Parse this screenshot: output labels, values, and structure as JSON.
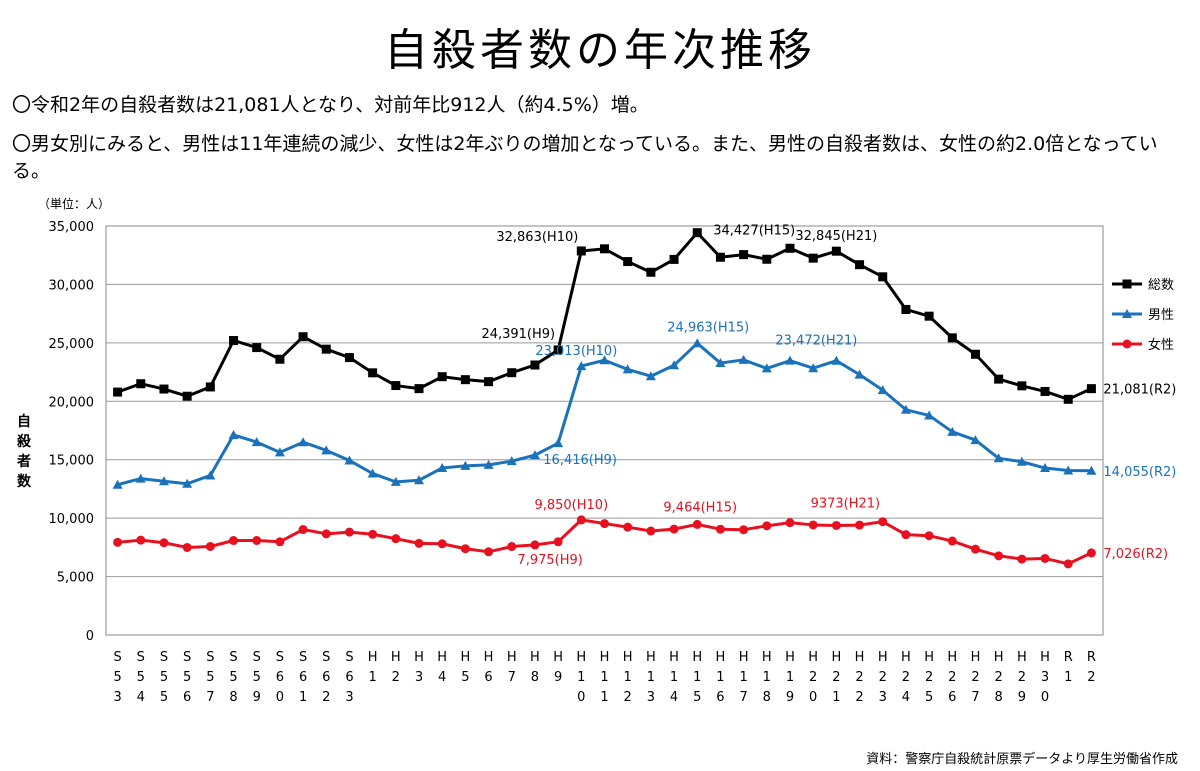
{
  "title": "自殺者数の年次推移",
  "bullets": [
    "〇令和2年の自殺者数は21,081人となり、対前年比912人（約4.5%）増。",
    "〇男女別にみると、男性は11年連続の減少、女性は2年ぶりの増加となっている。また、男性の自殺者数は、女性の約2.0倍となっている。"
  ],
  "source": "資料：警察庁自殺統計原票データより厚生労働省作成",
  "chart_data": {
    "type": "line",
    "unit_label": "（単位：人）",
    "ylabel": "自殺者数",
    "ylim": [
      0,
      35000
    ],
    "yticks": [
      0,
      5000,
      10000,
      15000,
      20000,
      25000,
      30000,
      35000
    ],
    "ytick_labels": [
      "0",
      "5,000",
      "10,000",
      "15,000",
      "20,000",
      "25,000",
      "30,000",
      "35,000"
    ],
    "categories": [
      "S53",
      "S54",
      "S55",
      "S56",
      "S57",
      "S58",
      "S59",
      "S60",
      "S61",
      "S62",
      "S63",
      "H1",
      "H2",
      "H3",
      "H4",
      "H5",
      "H6",
      "H7",
      "H8",
      "H9",
      "H10",
      "H11",
      "H12",
      "H13",
      "H14",
      "H15",
      "H16",
      "H17",
      "H18",
      "H19",
      "H20",
      "H21",
      "H22",
      "H23",
      "H24",
      "H25",
      "H26",
      "H27",
      "H28",
      "H29",
      "H30",
      "R1",
      "R2"
    ],
    "series": [
      {
        "name": "総数",
        "color": "#000000",
        "marker": "square",
        "values": [
          20788,
          21503,
          21048,
          20434,
          21228,
          25202,
          24596,
          23599,
          25524,
          24460,
          23742,
          22436,
          21346,
          21084,
          22104,
          21851,
          21679,
          22445,
          23104,
          24391,
          32863,
          33048,
          31957,
          31042,
          32143,
          34427,
          32325,
          32552,
          32155,
          33093,
          32249,
          32845,
          31690,
          30651,
          27858,
          27283,
          25427,
          24025,
          21897,
          21321,
          20840,
          20169,
          21081
        ]
      },
      {
        "name": "男性",
        "color": "#1a72bb",
        "marker": "triangle",
        "values": [
          12859,
          13386,
          13155,
          12942,
          13654,
          17116,
          16508,
          15624,
          16497,
          15802,
          14934,
          13818,
          13102,
          13242,
          14296,
          14468,
          14560,
          14874,
          15393,
          16416,
          23013,
          23512,
          22727,
          22144,
          23080,
          24963,
          23272,
          23540,
          22813,
          23478,
          22831,
          23472,
          22283,
          20955,
          19273,
          18787,
          17386,
          16681,
          15121,
          14826,
          14290,
          14078,
          14055
        ]
      },
      {
        "name": "女性",
        "color": "#e8101e",
        "marker": "circle",
        "values": [
          7929,
          8117,
          7893,
          7492,
          7574,
          8086,
          8088,
          7975,
          9027,
          8658,
          8808,
          8618,
          8244,
          7842,
          7808,
          7383,
          7119,
          7571,
          7711,
          7975,
          9850,
          9536,
          9230,
          8898,
          9063,
          9464,
          9053,
          9012,
          9342,
          9615,
          9418,
          9373,
          9407,
          9696,
          8585,
          8496,
          8041,
          7344,
          6776,
          6495,
          6550,
          6091,
          7026
        ]
      }
    ],
    "annotations": [
      {
        "text": "32,863(H10)",
        "color": "#000000",
        "category": "H10",
        "value": 32863,
        "anchor": "end",
        "dx": -3,
        "dy": -10
      },
      {
        "text": "24,391(H9)",
        "color": "#000000",
        "category": "H9",
        "value": 24391,
        "anchor": "end",
        "dx": -3,
        "dy": -12
      },
      {
        "text": "34,427(H15)",
        "color": "#000000",
        "category": "H15",
        "value": 34427,
        "anchor": "start",
        "dx": 16,
        "dy": 2
      },
      {
        "text": "32,845(H21)",
        "color": "#000000",
        "category": "H21",
        "value": 32845,
        "anchor": "middle",
        "dx": 0,
        "dy": -11
      },
      {
        "text": "21,081(R2)",
        "color": "#000000",
        "category": "R2",
        "value": 21081,
        "anchor": "start",
        "dx": 12,
        "dy": 5
      },
      {
        "text": "23,013(H10)",
        "color": "#1a72bb",
        "category": "H10",
        "value": 23013,
        "anchor": "middle",
        "dx": -5,
        "dy": -11
      },
      {
        "text": "24,963(H15)",
        "color": "#1a72bb",
        "category": "H15",
        "value": 24963,
        "anchor": "middle",
        "dx": 11,
        "dy": -12
      },
      {
        "text": "23,472(H21)",
        "color": "#1a72bb",
        "category": "H21",
        "value": 23472,
        "anchor": "middle",
        "dx": -20,
        "dy": -16
      },
      {
        "text": "16,416(H9)",
        "color": "#1a72bb",
        "category": "H9",
        "value": 16416,
        "anchor": "middle",
        "dx": 22,
        "dy": 21
      },
      {
        "text": "14,055(R2)",
        "color": "#1a72bb",
        "category": "R2",
        "value": 14055,
        "anchor": "start",
        "dx": 12,
        "dy": 5
      },
      {
        "text": "9,850(H10)",
        "color": "#e8101e",
        "category": "H10",
        "value": 9850,
        "anchor": "middle",
        "dx": -10,
        "dy": -11
      },
      {
        "text": "9,464(H15)",
        "color": "#e8101e",
        "category": "H15",
        "value": 9464,
        "anchor": "middle",
        "dx": 3,
        "dy": -13
      },
      {
        "text": "9373(H21)",
        "color": "#e8101e",
        "category": "H21",
        "value": 9373,
        "anchor": "middle",
        "dx": 9,
        "dy": -18
      },
      {
        "text": "7,975(H9)",
        "color": "#e8101e",
        "category": "H9",
        "value": 7975,
        "anchor": "middle",
        "dx": -8,
        "dy": 22
      },
      {
        "text": "7,026(R2)",
        "color": "#e8101e",
        "category": "R2",
        "value": 7026,
        "anchor": "start",
        "dx": 12,
        "dy": 5
      }
    ],
    "legend_position": "right",
    "grid": true
  }
}
